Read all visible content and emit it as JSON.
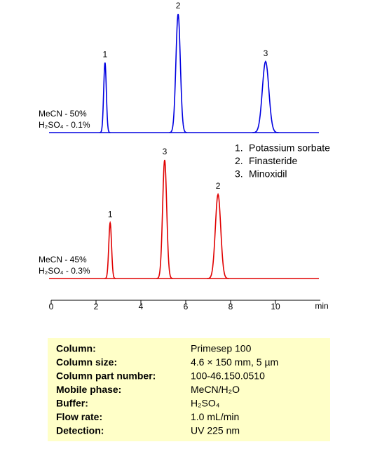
{
  "chart_data": {
    "type": "chromatogram",
    "xlim": [
      0,
      12
    ],
    "xticks": [
      0,
      2,
      4,
      6,
      8,
      10
    ],
    "xlabel": "min",
    "ylim": [
      0,
      100
    ],
    "series": [
      {
        "conditions": [
          "MeCN - 50%",
          "H₂SO₄ - 0.1%"
        ],
        "color": "#0000e0",
        "x": [
          2.4,
          5.66,
          9.56
        ],
        "values": [
          59,
          100,
          60
        ],
        "peak_labels": [
          "1",
          "2",
          "3"
        ]
      },
      {
        "conditions": [
          "MeCN - 45%",
          "H₂SO₄ - 0.3%"
        ],
        "color": "#e00000",
        "x": [
          2.63,
          5.06,
          7.44
        ],
        "values": [
          47,
          100,
          71
        ],
        "peak_labels": [
          "1",
          "3",
          "2"
        ]
      }
    ],
    "compounds": [
      {
        "number": "1.",
        "name": "Potassium sorbate"
      },
      {
        "number": "2.",
        "name": "Finasteride"
      },
      {
        "number": "3.",
        "name": "Minoxidil"
      }
    ]
  },
  "info": {
    "rows": [
      [
        "Column:",
        "Primesep  100"
      ],
      [
        "Column size:",
        "4.6 × 150 mm, 5 µm"
      ],
      [
        "Column part number:",
        "100-46.150.0510"
      ],
      [
        "Mobile phase:",
        "MeCN/H₂O"
      ],
      [
        "Buffer:",
        "H₂SO₄"
      ],
      [
        "Flow rate:",
        "1.0 mL/min"
      ],
      [
        "Detection:",
        "UV 225  nm"
      ]
    ]
  }
}
